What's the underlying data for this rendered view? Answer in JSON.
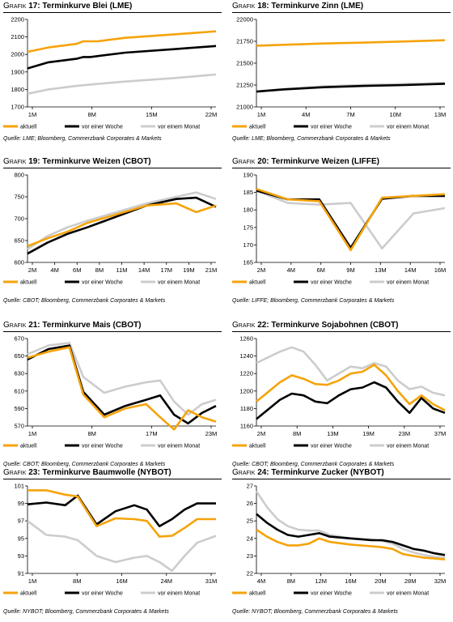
{
  "legend_defaults": {
    "aktuell": "aktuell",
    "woche": "vor einer Woche",
    "monat": "vor einem Monat"
  },
  "colors": {
    "aktuell": "#f5a30a",
    "woche": "#000000",
    "monat": "#cccccc"
  },
  "panels": [
    {
      "grafik": "Grafik",
      "number": "17:",
      "title": "Terminkurve Blei (LME)",
      "source": "Quelle: LME; Bloomberg, Commerzbank Corporates & Markets"
    },
    {
      "grafik": "Grafik",
      "number": "18:",
      "title": "Terminkurve Zinn (LME)",
      "source": "Quelle: LME; Bloomberg, Commerzbank Corporates & Markets"
    },
    {
      "grafik": "Grafik",
      "number": "19:",
      "title": "Terminkurve Weizen (CBOT)",
      "source": "Quelle: CBOT; Bloomberg, Commerzbank Corporates & Markets"
    },
    {
      "grafik": "Grafik",
      "number": "20:",
      "title": "Terminkurve Weizen (LIFFE)",
      "source": "Quelle: LIFFE; Bloomberg, Commerzbank Corporates & Markets"
    },
    {
      "grafik": "Grafik",
      "number": "21:",
      "title": "Terminkurve Mais (CBOT)",
      "source": "Quelle: CBOT; Bloomberg, Commerzbank Corporates & Markets"
    },
    {
      "grafik": "Grafik",
      "number": "22:",
      "title": "Terminkurve Sojabohnen (CBOT)",
      "source": "Quelle: CBOT; Bloomberg, Commerzbank Corporates & Markets"
    },
    {
      "grafik": "Grafik",
      "number": "23:",
      "title": "Terminkurve Baumwolle (NYBOT)",
      "source": "Quelle: NYBOT; Bloomberg, Commerzbank Corporates & Markets"
    },
    {
      "grafik": "Grafik",
      "number": "24:",
      "title": "Terminkurve Zucker (NYBOT)",
      "source": "Quelle: NYBOT; Bloomberg, Commerzbank Corporates & Markets"
    }
  ],
  "chart_data": [
    {
      "type": "line",
      "ylim": [
        1700,
        2200
      ],
      "yticks": [
        1700,
        1800,
        1900,
        2000,
        2100,
        2200
      ],
      "xticks": [
        "1M",
        "8M",
        "15M",
        "22M"
      ],
      "x": [
        1,
        28
      ],
      "series": [
        {
          "name": "aktuell",
          "x": [
            1,
            4,
            8,
            9,
            11,
            15,
            22,
            28
          ],
          "values": [
            2015,
            2040,
            2060,
            2075,
            2075,
            2095,
            2115,
            2132
          ]
        },
        {
          "name": "vor einer Woche",
          "x": [
            1,
            4,
            8,
            9,
            10,
            15,
            22,
            28
          ],
          "values": [
            1920,
            1955,
            1975,
            1985,
            1985,
            2010,
            2030,
            2048
          ]
        },
        {
          "name": "vor einem Monat",
          "x": [
            1,
            4,
            8,
            10,
            15,
            22,
            28
          ],
          "values": [
            1775,
            1800,
            1820,
            1828,
            1845,
            1865,
            1885
          ]
        }
      ]
    },
    {
      "type": "line",
      "ylim": [
        21000,
        22000
      ],
      "yticks": [
        21000,
        21250,
        21500,
        21750,
        22000
      ],
      "xticks": [
        "1M",
        "4M",
        "7M",
        "10M",
        "13M"
      ],
      "x": [
        1,
        15
      ],
      "series": [
        {
          "name": "aktuell",
          "x": [
            1,
            3,
            6,
            9,
            12,
            15
          ],
          "values": [
            21700,
            21710,
            21725,
            21735,
            21748,
            21762
          ]
        },
        {
          "name": "vor einer Woche",
          "x": [
            1,
            3,
            6,
            9,
            12,
            15
          ],
          "values": [
            21175,
            21200,
            21225,
            21240,
            21250,
            21265
          ]
        },
        {
          "name": "vor einem Monat",
          "x": [
            1,
            3,
            6,
            9,
            12,
            15
          ],
          "values": [
            21175,
            21205,
            21235,
            21252,
            21262,
            21275
          ]
        }
      ]
    },
    {
      "type": "line",
      "ylim": [
        600,
        800
      ],
      "yticks": [
        600,
        650,
        700,
        750,
        800
      ],
      "xticks": [
        "2M",
        "4M",
        "6M",
        "8M",
        "11M",
        "14M",
        "17M",
        "19M",
        "21M"
      ],
      "x": [
        2,
        21
      ],
      "series": [
        {
          "name": "aktuell",
          "x": [
            2,
            4,
            6,
            8,
            11,
            14,
            17,
            19,
            21
          ],
          "values": [
            637,
            655,
            670,
            690,
            710,
            730,
            735,
            715,
            730
          ]
        },
        {
          "name": "vor einer Woche",
          "x": [
            2,
            4,
            6,
            8,
            11,
            14,
            17,
            19,
            21
          ],
          "values": [
            620,
            645,
            665,
            680,
            705,
            730,
            745,
            748,
            727
          ]
        },
        {
          "name": "vor einem Monat",
          "x": [
            2,
            4,
            6,
            8,
            11,
            14,
            17,
            19,
            21
          ],
          "values": [
            630,
            660,
            680,
            695,
            715,
            735,
            750,
            760,
            745
          ]
        }
      ]
    },
    {
      "type": "line",
      "ylim": [
        165,
        190
      ],
      "yticks": [
        165,
        170,
        175,
        180,
        185,
        190
      ],
      "xticks": [
        "2M",
        "4M",
        "6M",
        "9M",
        "13M",
        "14M",
        "16M"
      ],
      "x": [
        1,
        7
      ],
      "series": [
        {
          "name": "aktuell",
          "x": [
            1,
            2,
            3,
            4,
            5,
            6,
            7
          ],
          "values": [
            186,
            183,
            182.5,
            168.5,
            183.5,
            184,
            184.5
          ]
        },
        {
          "name": "vor einer Woche",
          "x": [
            1,
            2,
            3,
            4,
            5,
            6,
            7
          ],
          "values": [
            185.5,
            183,
            183,
            169.2,
            183.2,
            184,
            184
          ]
        },
        {
          "name": "vor einem Monat",
          "x": [
            1,
            2,
            3,
            4,
            5,
            6,
            7
          ],
          "values": [
            185.5,
            182,
            181.5,
            182,
            169,
            179,
            180.5
          ]
        }
      ]
    },
    {
      "type": "line",
      "ylim": [
        570,
        670
      ],
      "yticks": [
        570,
        590,
        610,
        630,
        650,
        670
      ],
      "xticks": [
        "1M",
        "8M",
        "17M",
        "23M"
      ],
      "x": [
        1,
        28
      ],
      "series": [
        {
          "name": "aktuell",
          "x": [
            1,
            4,
            7,
            9,
            12,
            15,
            18,
            20,
            22,
            24,
            26,
            28
          ],
          "values": [
            648,
            655,
            660,
            606,
            580,
            590,
            595,
            580,
            566,
            588,
            580,
            575
          ]
        },
        {
          "name": "vor einer Woche",
          "x": [
            1,
            4,
            7,
            9,
            12,
            15,
            18,
            20,
            22,
            24,
            26,
            28
          ],
          "values": [
            646,
            658,
            662,
            609,
            583,
            593,
            600,
            605,
            583,
            573,
            585,
            593
          ]
        },
        {
          "name": "vor einem Monat",
          "x": [
            1,
            4,
            7,
            9,
            12,
            15,
            18,
            20,
            22,
            24,
            26,
            28
          ],
          "values": [
            652,
            662,
            665,
            626,
            608,
            615,
            620,
            622,
            598,
            583,
            595,
            600
          ]
        }
      ]
    },
    {
      "type": "line",
      "ylim": [
        1160,
        1260
      ],
      "yticks": [
        1160,
        1180,
        1200,
        1220,
        1240,
        1260
      ],
      "xticks": [
        "2M",
        "8M",
        "13M",
        "19M",
        "23M",
        "37M"
      ],
      "x": [
        1,
        17
      ],
      "series": [
        {
          "name": "aktuell",
          "x": [
            1,
            3,
            4,
            5,
            6,
            7,
            8,
            9,
            10,
            11,
            12,
            13,
            14,
            15,
            16,
            17
          ],
          "values": [
            1188,
            1210,
            1218,
            1214,
            1208,
            1207,
            1212,
            1220,
            1222,
            1230,
            1218,
            1200,
            1185,
            1195,
            1185,
            1178
          ]
        },
        {
          "name": "vor einer Woche",
          "x": [
            1,
            3,
            4,
            5,
            6,
            7,
            8,
            9,
            10,
            11,
            12,
            13,
            14,
            15,
            16,
            17
          ],
          "values": [
            1168,
            1190,
            1197,
            1195,
            1188,
            1186,
            1195,
            1202,
            1204,
            1210,
            1204,
            1188,
            1175,
            1192,
            1180,
            1175
          ]
        },
        {
          "name": "vor einem Monat",
          "x": [
            1,
            3,
            4,
            5,
            6,
            7,
            8,
            9,
            10,
            11,
            12,
            13,
            14,
            15,
            16,
            17
          ],
          "values": [
            1232,
            1245,
            1250,
            1245,
            1230,
            1212,
            1220,
            1228,
            1226,
            1232,
            1228,
            1212,
            1202,
            1205,
            1198,
            1195
          ]
        }
      ]
    },
    {
      "type": "line",
      "ylim": [
        91,
        101
      ],
      "yticks": [
        91,
        93,
        95,
        97,
        99,
        101
      ],
      "xticks": [
        "1M",
        "8M",
        "16M",
        "24M",
        "31M"
      ],
      "x": [
        1,
        31
      ],
      "series": [
        {
          "name": "aktuell",
          "x": [
            1,
            4,
            7,
            9,
            12,
            15,
            18,
            20,
            22,
            24,
            26,
            28,
            31
          ],
          "values": [
            100.5,
            100.5,
            100,
            99.8,
            96.4,
            97.3,
            97.2,
            97,
            95.2,
            95.3,
            96.2,
            97.2,
            97.2
          ]
        },
        {
          "name": "vor einer Woche",
          "x": [
            1,
            4,
            7,
            9,
            12,
            15,
            18,
            20,
            22,
            24,
            26,
            28,
            31
          ],
          "values": [
            98.9,
            99.1,
            98.8,
            99.9,
            96.6,
            98.1,
            98.8,
            98.3,
            96.4,
            97.2,
            98.3,
            99,
            99
          ]
        },
        {
          "name": "vor einem Monat",
          "x": [
            1,
            4,
            7,
            9,
            12,
            15,
            18,
            20,
            22,
            24,
            26,
            28,
            31
          ],
          "values": [
            97,
            95.4,
            95.2,
            94.8,
            93,
            92.3,
            92.8,
            93,
            92.3,
            91.3,
            93,
            94.5,
            95.3
          ]
        }
      ]
    },
    {
      "type": "line",
      "ylim": [
        22,
        27
      ],
      "yticks": [
        22,
        23,
        24,
        25,
        26,
        27
      ],
      "xticks": [
        "4M",
        "8M",
        "12M",
        "16M",
        "20M",
        "28M",
        "32M"
      ],
      "x": [
        1,
        19
      ],
      "series": [
        {
          "name": "aktuell",
          "x": [
            1,
            2,
            3,
            4,
            5,
            6,
            7,
            8,
            10,
            12,
            13,
            14,
            15,
            16,
            17,
            18,
            19
          ],
          "values": [
            24.5,
            24.1,
            23.8,
            23.6,
            23.6,
            23.7,
            24,
            23.8,
            23.65,
            23.55,
            23.5,
            23.4,
            23.1,
            23,
            22.9,
            22.85,
            22.8
          ]
        },
        {
          "name": "vor einer Woche",
          "x": [
            1,
            2,
            3,
            4,
            5,
            6,
            7,
            8,
            10,
            12,
            13,
            14,
            15,
            16,
            17,
            18,
            19
          ],
          "values": [
            25.4,
            24.9,
            24.5,
            24.2,
            24.1,
            24.2,
            24.3,
            24.1,
            24,
            23.9,
            23.9,
            23.8,
            23.6,
            23.4,
            23.3,
            23.15,
            23.05
          ]
        },
        {
          "name": "vor einem Monat",
          "x": [
            1,
            2,
            3,
            4,
            5,
            6,
            7,
            8,
            10,
            12,
            13,
            14,
            15,
            16,
            17,
            18,
            19
          ],
          "values": [
            26.7,
            25.8,
            25.1,
            24.7,
            24.5,
            24.45,
            24.45,
            24.2,
            24,
            23.95,
            23.85,
            23.7,
            23.4,
            23.2,
            23.05,
            22.95,
            22.9
          ]
        }
      ]
    }
  ]
}
